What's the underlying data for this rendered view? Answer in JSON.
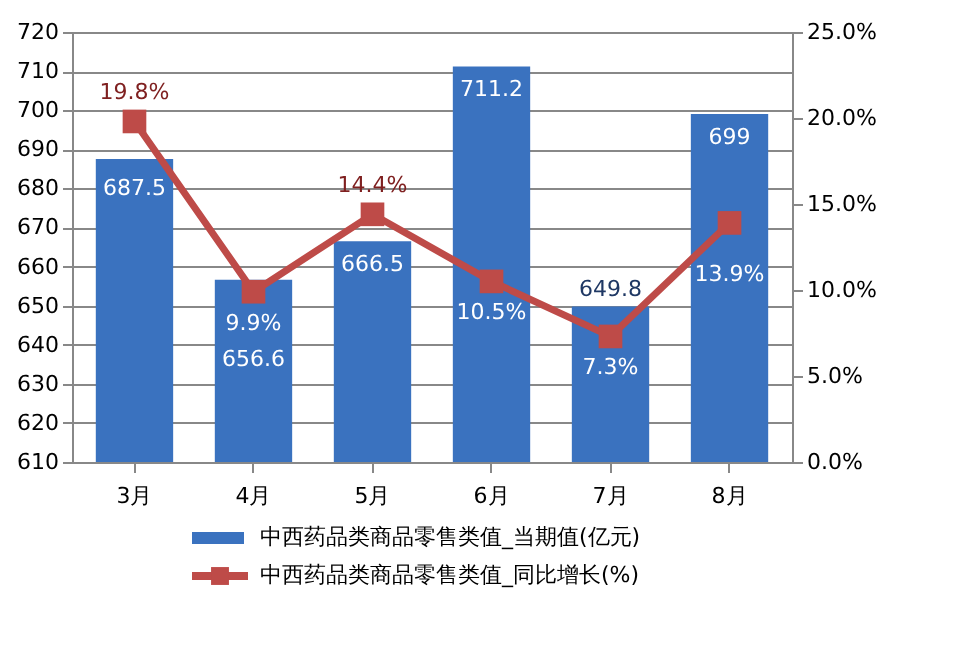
{
  "chart_data": {
    "type": "bar",
    "categories": [
      "3月",
      "4月",
      "5月",
      "6月",
      "7月",
      "8月"
    ],
    "series": [
      {
        "name": "中西药品类商品零售类值_当期值(亿元)",
        "color": "#3a72bf",
        "values": [
          687.5,
          656.6,
          666.5,
          711.2,
          649.8,
          699
        ],
        "data_labels": true
      },
      {
        "name": "中西药品类商品零售类值_同比增长(%)",
        "type": "line",
        "axis": "y2",
        "color": "#be4b48",
        "marker": "square",
        "values": [
          19.8,
          9.9,
          14.4,
          10.5,
          7.3,
          13.9
        ],
        "value_labels": [
          "19.8%",
          "9.9%",
          "14.4%",
          "10.5%",
          "7.3%",
          "13.9%"
        ]
      }
    ],
    "ylim": [
      610,
      720
    ],
    "yticks": [
      610,
      620,
      630,
      640,
      650,
      660,
      670,
      680,
      690,
      700,
      710,
      720
    ],
    "y2lim": [
      0,
      25
    ],
    "y2ticks": [
      {
        "value": 0,
        "label": "0.0%"
      },
      {
        "value": 5,
        "label": "5.0%"
      },
      {
        "value": 10,
        "label": "10.0%"
      },
      {
        "value": 15,
        "label": "15.0%"
      },
      {
        "value": 20,
        "label": "20.0%"
      },
      {
        "value": 25,
        "label": "25.0%"
      }
    ],
    "grid": "y",
    "legend": "bottom"
  }
}
